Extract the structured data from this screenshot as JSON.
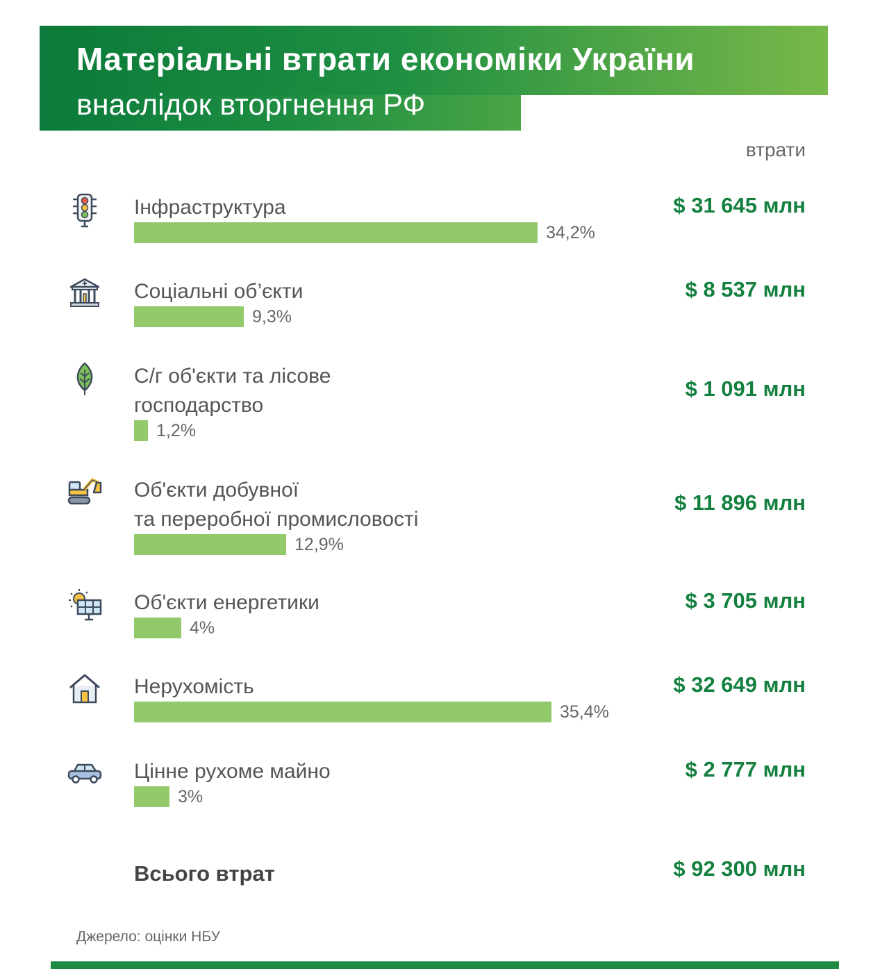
{
  "header": {
    "title": "Матеріальні втрати економіки України",
    "subtitle": "внаслідок вторгнення РФ"
  },
  "column_header": "втрати",
  "chart_data": {
    "type": "bar",
    "title": "Матеріальні втрати економіки України внаслідок вторгнення РФ",
    "orientation": "horizontal",
    "categories": [
      "Інфраструктура",
      "Соціальні об’єкти",
      "С/г об'єкти та лісове господарство",
      "Об'єкти добувної та переробної промисловості",
      "Об'єкти енергетики",
      "Нерухомість",
      "Цінне рухоме майно"
    ],
    "series": [
      {
        "values": [
          34.2,
          9.3,
          1.2,
          12.9,
          4,
          35.4,
          3
        ]
      },
      {
        "values": [
          31645,
          8537,
          1091,
          11896,
          3705,
          32649,
          2777
        ]
      }
    ],
    "colors": {
      "bar": "#92c96a",
      "value_text": "#14803f",
      "banner": "#0b7a3a"
    }
  },
  "rows": [
    {
      "icon": "traffic-light-icon",
      "label1": "Інфраструктура",
      "label2": "",
      "pct": "34,2%",
      "value": "$ 31 645 млн"
    },
    {
      "icon": "bank-building-icon",
      "label1": "Соціальні об’єкти",
      "label2": "",
      "pct": "9,3%",
      "value": "$ 8 537 млн"
    },
    {
      "icon": "leaf-icon",
      "label1": "С/г об'єкти та лісове",
      "label2": "господарство",
      "pct": "1,2%",
      "value": "$ 1 091 млн"
    },
    {
      "icon": "excavator-icon",
      "label1": "Об'єкти добувної",
      "label2": "та переробної промисловості",
      "pct": "12,9%",
      "value": "$ 11 896 млн"
    },
    {
      "icon": "solar-panel-icon",
      "label1": "Об'єкти енергетики",
      "label2": "",
      "pct": "4%",
      "value": "$ 3 705 млн"
    },
    {
      "icon": "house-icon",
      "label1": "Нерухомість",
      "label2": "",
      "pct": "35,4%",
      "value": "$ 32 649 млн"
    },
    {
      "icon": "car-icon",
      "label1": "Цінне рухоме майно",
      "label2": "",
      "pct": "3%",
      "value": "$ 2 777 млн"
    }
  ],
  "total": {
    "label": "Всього втрат",
    "value": "$ 92 300 млн"
  },
  "source": "Джерело: оцінки НБУ"
}
